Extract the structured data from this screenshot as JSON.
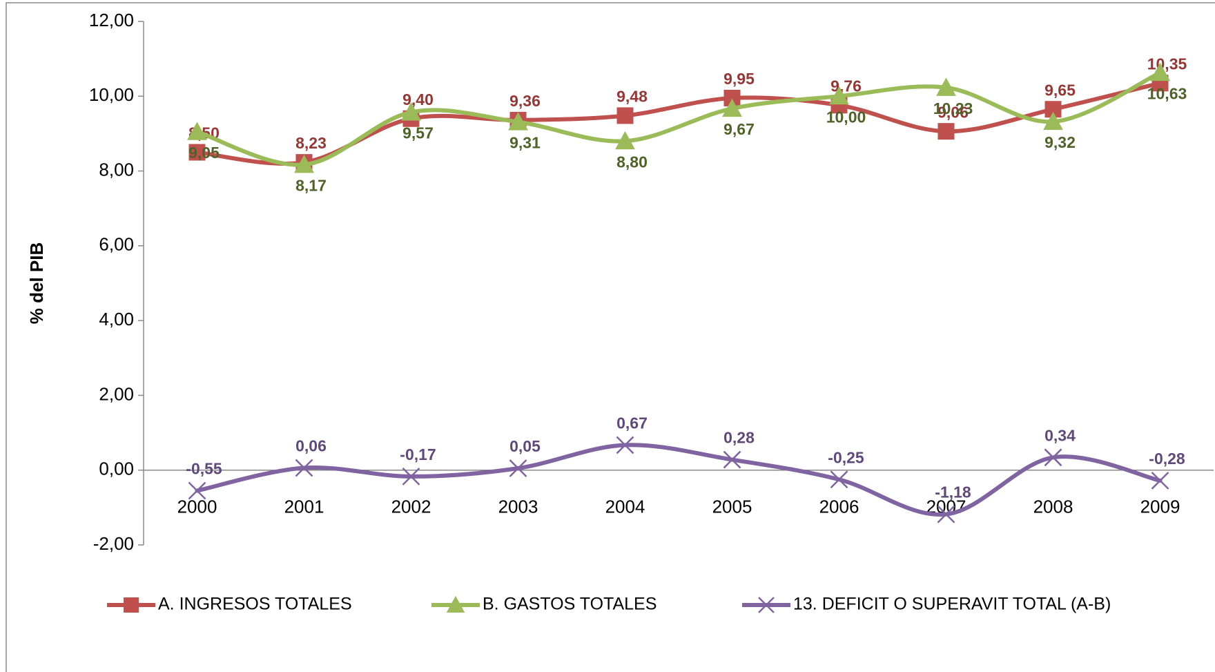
{
  "chart_data": {
    "type": "line",
    "y_label": "% del PIB",
    "categories": [
      "2000",
      "2001",
      "2002",
      "2003",
      "2004",
      "2005",
      "2006",
      "2007",
      "2008",
      "2009"
    ],
    "series": [
      {
        "name": "A. INGRESOS TOTALES",
        "color": "#c0504d",
        "label_color": "#953735",
        "marker": "square",
        "values": [
          8.5,
          8.23,
          9.4,
          9.36,
          9.48,
          9.95,
          9.76,
          9.06,
          9.65,
          10.35
        ],
        "value_labels": [
          "8,50",
          "8,23",
          "9,40",
          "9,36",
          "9,48",
          "9,95",
          "9,76",
          "9,06",
          "9,65",
          "10,35"
        ]
      },
      {
        "name": "B. GASTOS TOTALES",
        "color": "#9bbb59",
        "label_color": "#4f6228",
        "marker": "triangle",
        "values": [
          9.05,
          8.17,
          9.57,
          9.31,
          8.8,
          9.67,
          10.0,
          10.23,
          9.32,
          10.63
        ],
        "value_labels": [
          "9,05",
          "8,17",
          "9,57",
          "9,31",
          "8,80",
          "9,67",
          "10,00",
          "10,23",
          "9,32",
          "10,63"
        ]
      },
      {
        "name": "13. DEFICIT O SUPERAVIT TOTAL (A-B)",
        "color": "#8064a2",
        "label_color": "#5f497a",
        "marker": "x",
        "values": [
          -0.55,
          0.06,
          -0.17,
          0.05,
          0.67,
          0.28,
          -0.25,
          -1.18,
          0.34,
          -0.28
        ],
        "value_labels": [
          "-0,55",
          "0,06",
          "-0,17",
          "0,05",
          "0,67",
          "0,28",
          "-0,25",
          "-1,18",
          "0,34",
          "-0,28"
        ]
      }
    ],
    "ylim": [
      -2,
      12
    ],
    "yticks": [
      {
        "value": -2,
        "label": "-2,00"
      },
      {
        "value": 0,
        "label": "0,00"
      },
      {
        "value": 2,
        "label": "2,00"
      },
      {
        "value": 4,
        "label": "4,00"
      },
      {
        "value": 6,
        "label": "6,00"
      },
      {
        "value": 8,
        "label": "8,00"
      },
      {
        "value": 10,
        "label": "10,00"
      },
      {
        "value": 12,
        "label": "12,00"
      }
    ],
    "smooth": true
  }
}
